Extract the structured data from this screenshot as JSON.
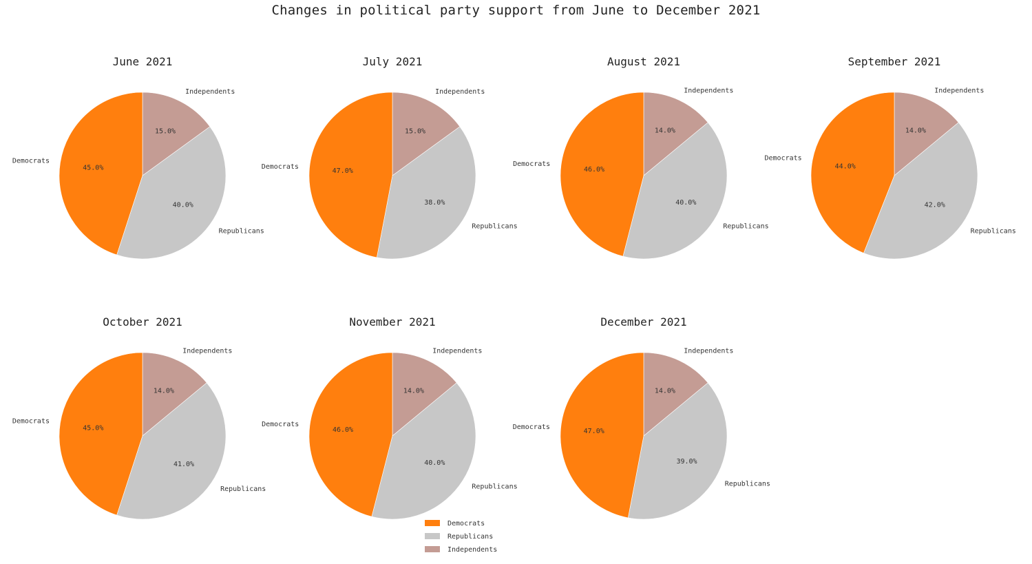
{
  "chart_data": {
    "type": "pie",
    "title": "Changes in political party support from June to December 2021",
    "labels": [
      "Democrats",
      "Republicans",
      "Independents"
    ],
    "colors": {
      "Democrats": "#ff7f0e",
      "Republicans": "#c7c7c7",
      "Independents": "#c49c94"
    },
    "start_angle": "90 degrees, clockwise from top (Independents, Republicans, Democrats)",
    "legend": {
      "position": "bottom-center",
      "entries": [
        "Democrats",
        "Republicans",
        "Independents"
      ]
    },
    "charts": [
      {
        "title": "June 2021",
        "values": {
          "Democrats": 45.0,
          "Republicans": 40.0,
          "Independents": 15.0
        }
      },
      {
        "title": "July 2021",
        "values": {
          "Democrats": 47.0,
          "Republicans": 38.0,
          "Independents": 15.0
        }
      },
      {
        "title": "August 2021",
        "values": {
          "Democrats": 46.0,
          "Republicans": 40.0,
          "Independents": 14.0
        }
      },
      {
        "title": "September 2021",
        "values": {
          "Democrats": 44.0,
          "Republicans": 42.0,
          "Independents": 14.0
        }
      },
      {
        "title": "October 2021",
        "values": {
          "Democrats": 45.0,
          "Republicans": 41.0,
          "Independents": 14.0
        }
      },
      {
        "title": "November 2021",
        "values": {
          "Democrats": 46.0,
          "Republicans": 40.0,
          "Independents": 14.0
        }
      },
      {
        "title": "December 2021",
        "values": {
          "Democrats": 47.0,
          "Republicans": 39.0,
          "Independents": 14.0
        }
      }
    ]
  }
}
